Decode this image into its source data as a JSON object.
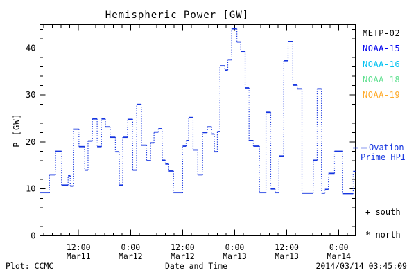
{
  "header": {
    "title": "Hemispheric Power [GW]"
  },
  "footer": {
    "left": "Plot: CCMC",
    "center": "Date and Time",
    "right": "2014/03/14 03:45:09"
  },
  "legend": {
    "satellites": [
      {
        "label": "METP-02",
        "color": "#000000"
      },
      {
        "label": "NOAA-15",
        "color": "#0000ee"
      },
      {
        "label": "NOAA-16",
        "color": "#00c0f0"
      },
      {
        "label": "NOAA-18",
        "color": "#5fe08f"
      },
      {
        "label": "NOAA-19",
        "color": "#ffaa28"
      }
    ],
    "model": {
      "label_line1": "Ovation",
      "label_line2": "Prime HPI",
      "color": "#1535e0"
    },
    "markers": [
      {
        "symbol": "+",
        "label": "south"
      },
      {
        "symbol": "*",
        "label": "north"
      }
    ]
  },
  "chart_data": {
    "type": "line",
    "title": "Hemispheric Power [GW]",
    "xlabel": "Date and Time",
    "ylabel": "P [GW]",
    "ylim": [
      0,
      45
    ],
    "y_major_ticks": [
      0,
      10,
      20,
      30,
      40
    ],
    "y_minor_step": 2,
    "x_hours_span": 72.7,
    "x_minor_step_hours": 2,
    "x_major_ticks": [
      {
        "t": 8.9,
        "time": "12:00",
        "date": "Mar11"
      },
      {
        "t": 20.9,
        "time": "0:00",
        "date": "Mar12"
      },
      {
        "t": 32.9,
        "time": "12:00",
        "date": "Mar12"
      },
      {
        "t": 44.9,
        "time": "0:00",
        "date": "Mar13"
      },
      {
        "t": 56.9,
        "time": "12:00",
        "date": "Mar13"
      },
      {
        "t": 68.9,
        "time": "0:00",
        "date": "Mar14"
      }
    ],
    "grid": false,
    "legend_position": "right",
    "series": [
      {
        "name": "Ovation Prime HPI",
        "color": "#1535e0",
        "style": "steps-after, solid levels with dotted risers",
        "units": "GW",
        "x_units": "hours since 2014/03/11 03:45",
        "points": [
          [
            0.0,
            9.2
          ],
          [
            2.2,
            13.0
          ],
          [
            3.6,
            18.0
          ],
          [
            5.0,
            10.8
          ],
          [
            6.5,
            12.8
          ],
          [
            7.0,
            10.6
          ],
          [
            7.8,
            22.7
          ],
          [
            9.0,
            19.0
          ],
          [
            10.3,
            14.0
          ],
          [
            11.1,
            20.2
          ],
          [
            12.1,
            24.9
          ],
          [
            13.2,
            19.0
          ],
          [
            14.2,
            24.9
          ],
          [
            15.1,
            23.2
          ],
          [
            16.2,
            21.0
          ],
          [
            17.4,
            17.9
          ],
          [
            18.3,
            10.8
          ],
          [
            19.1,
            21.0
          ],
          [
            20.2,
            24.8
          ],
          [
            21.4,
            14.0
          ],
          [
            22.3,
            28.0
          ],
          [
            23.4,
            19.3
          ],
          [
            24.6,
            16.0
          ],
          [
            25.5,
            19.8
          ],
          [
            26.3,
            22.1
          ],
          [
            27.3,
            22.8
          ],
          [
            28.2,
            16.1
          ],
          [
            28.9,
            15.3
          ],
          [
            29.7,
            13.8
          ],
          [
            30.8,
            9.2
          ],
          [
            32.9,
            19.1
          ],
          [
            33.7,
            20.3
          ],
          [
            34.3,
            25.2
          ],
          [
            35.3,
            18.3
          ],
          [
            36.4,
            13.0
          ],
          [
            37.5,
            22.0
          ],
          [
            38.6,
            23.2
          ],
          [
            39.6,
            21.7
          ],
          [
            40.2,
            17.9
          ],
          [
            40.9,
            22.2
          ],
          [
            41.5,
            36.2
          ],
          [
            42.6,
            35.3
          ],
          [
            43.3,
            37.5
          ],
          [
            44.2,
            44.1
          ],
          [
            45.4,
            41.3
          ],
          [
            46.3,
            39.3
          ],
          [
            47.3,
            31.5
          ],
          [
            48.2,
            20.3
          ],
          [
            49.2,
            19.1
          ],
          [
            50.6,
            9.2
          ],
          [
            52.1,
            26.3
          ],
          [
            53.2,
            10.0
          ],
          [
            54.2,
            9.2
          ],
          [
            55.1,
            17.0
          ],
          [
            56.2,
            37.3
          ],
          [
            57.2,
            41.4
          ],
          [
            58.3,
            32.1
          ],
          [
            59.3,
            31.3
          ],
          [
            60.4,
            9.1
          ],
          [
            63.0,
            16.1
          ],
          [
            63.9,
            31.3
          ],
          [
            64.9,
            9.1
          ],
          [
            65.7,
            9.9
          ],
          [
            66.5,
            13.3
          ],
          [
            67.9,
            18.0
          ],
          [
            69.7,
            9.0
          ],
          [
            72.2,
            13.7
          ]
        ]
      }
    ]
  }
}
